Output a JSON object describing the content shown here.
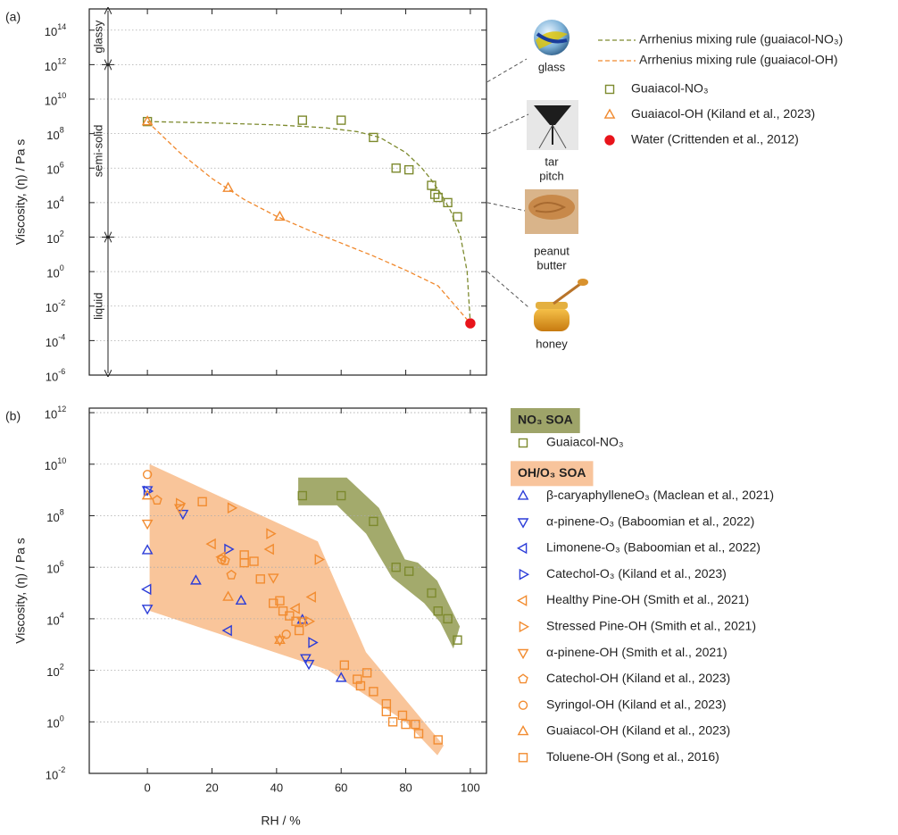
{
  "chart_data": [
    {
      "type": "scatter",
      "label": "(a)",
      "ylabel": "Viscosity, (η) / Pa s",
      "xlim": [
        -18,
        105
      ],
      "ylim": [
        1e-06,
        1700000000000000.0
      ],
      "log_y": true,
      "grid": true,
      "xtick_labels": false,
      "xticks": [
        0,
        20,
        40,
        60,
        80,
        100
      ],
      "yticks": [
        {
          "value": 1e-06,
          "label": "10^-6"
        },
        {
          "value": 0.0001,
          "label": "10^-4"
        },
        {
          "value": 0.01,
          "label": "10^-2"
        },
        {
          "value": 1,
          "label": "10^0"
        },
        {
          "value": 100,
          "label": "10^2"
        },
        {
          "value": 10000.0,
          "label": "10^4"
        },
        {
          "value": 1000000.0,
          "label": "10^6"
        },
        {
          "value": 100000000.0,
          "label": "10^8"
        },
        {
          "value": 10000000000.0,
          "label": "10^10"
        },
        {
          "value": 1000000000000.0,
          "label": "10^12"
        },
        {
          "value": 100000000000000.0,
          "label": "10^14"
        }
      ],
      "regions": {
        "boundaries": [
          1000000000000.0,
          100
        ],
        "labels": [
          "glassy",
          "semi-solid",
          "liquid"
        ]
      },
      "materials": [
        {
          "label": [
            "glass"
          ],
          "viscosity": 100000000000.0
        },
        {
          "label": [
            "tar",
            "pitch"
          ],
          "viscosity": 100000000.0
        },
        {
          "label": [
            "peanut",
            "butter"
          ],
          "viscosity": 10000.0
        },
        {
          "label": [
            "honey"
          ],
          "viscosity": 1
        }
      ],
      "series": [
        {
          "name": "Arrhenius mixing rule (guaiacol-NO₃)",
          "color": "#7d8a2e",
          "style": "dashed",
          "x": [
            0,
            20,
            40,
            55,
            65,
            72,
            80,
            85,
            88,
            91,
            94,
            97,
            99,
            100
          ],
          "values": [
            500000000.0,
            420000000.0,
            320000000.0,
            220000000.0,
            130000000.0,
            60000000.0,
            8000000.0,
            1000000.0,
            200000.0,
            30000.0,
            3000.0,
            100,
            1,
            0.001
          ]
        },
        {
          "name": "Arrhenius mixing rule (guaiacol-OH)",
          "color": "#f0892e",
          "style": "dashed",
          "x": [
            0,
            10,
            20,
            30,
            40,
            50,
            60,
            70,
            80,
            90,
            100
          ],
          "values": [
            500000000.0,
            8000000.0,
            250000.0,
            15000.0,
            1600,
            250,
            45,
            8,
            1.2,
            0.15,
            0.001
          ]
        },
        {
          "name": "Guaiacol-NO₃",
          "color": "#7d8a2e",
          "marker": "square",
          "x": [
            0,
            48,
            60,
            70,
            77,
            81,
            88,
            89,
            90,
            93,
            96
          ],
          "values": [
            500000000.0,
            600000000.0,
            600000000.0,
            60000000.0,
            1000000.0,
            800000.0,
            100000.0,
            30000.0,
            20000.0,
            10000.0,
            1500
          ]
        },
        {
          "name": "Guaiacol-OH (Kiland et al., 2023)",
          "color": "#f0892e",
          "marker": "up",
          "x": [
            0,
            25,
            41
          ],
          "values": [
            500000000.0,
            70000.0,
            1500
          ]
        },
        {
          "name": "Water (Crittenden et al., 2012)",
          "color": "#e8141b",
          "marker": "dot",
          "x": [
            100
          ],
          "values": [
            0.001
          ]
        }
      ]
    },
    {
      "type": "scatter",
      "label": "(b)",
      "ylabel": "Viscosity, (η) / Pa s",
      "xlabel": "RH / %",
      "xlim": [
        -18,
        105
      ],
      "ylim": [
        0.01,
        1500000000000.0
      ],
      "log_y": true,
      "grid": true,
      "xtick_labels": true,
      "xticks": [
        0,
        20,
        40,
        60,
        80,
        100
      ],
      "yticks": [
        {
          "value": 0.01,
          "label": "10^-2"
        },
        {
          "value": 1,
          "label": "10^0"
        },
        {
          "value": 100,
          "label": "10^2"
        },
        {
          "value": 10000.0,
          "label": "10^4"
        },
        {
          "value": 1000000.0,
          "label": "10^6"
        },
        {
          "value": 100000000.0,
          "label": "10^8"
        },
        {
          "value": 10000000000.0,
          "label": "10^10"
        },
        {
          "value": 1000000000000.0,
          "label": "10^12"
        }
      ],
      "groups": [
        {
          "name": "NO₃ SOA",
          "color": "#9ea469",
          "band_color": "#a3aa6c",
          "series": [
            {
              "name": "Guaiacol-NO₃",
              "color": "#7d8a2e",
              "marker": "square",
              "x": [
                48,
                60,
                70,
                77,
                81,
                88,
                90,
                93,
                96
              ],
              "values": [
                600000000.0,
                600000000.0,
                60000000.0,
                1000000.0,
                700000.0,
                100000.0,
                20000.0,
                10000.0,
                1500
              ]
            }
          ]
        },
        {
          "name": "OH/O₃ SOA",
          "color": "#f8c49c",
          "band_color": "#f9c59a",
          "series": [
            {
              "name": "β-caryaphylleneO₃ (Maclean et al., 2021)",
              "color": "#2b3cd8",
              "marker": "up",
              "x": [
                0,
                15,
                29,
                48,
                60
              ],
              "values": [
                4500000.0,
                300000.0,
                50000.0,
                9000,
                50
              ]
            },
            {
              "name": "α-pinene-O₃ (Baboomian et al., 2022)",
              "color": "#2b3cd8",
              "marker": "down",
              "x": [
                0,
                0,
                11,
                49,
                50
              ],
              "values": [
                1000000000.0,
                25000.0,
                120000000.0,
                300,
                180
              ]
            },
            {
              "name": "Limonene-O₃ (Baboomian et al., 2022)",
              "color": "#2b3cd8",
              "marker": "left",
              "x": [
                0,
                25
              ],
              "values": [
                140000.0,
                3500
              ]
            },
            {
              "name": "Catechol-O₃ (Kiland et al., 2023)",
              "color": "#2b3cd8",
              "marker": "right",
              "x": [
                0,
                25,
                51
              ],
              "values": [
                900000000.0,
                5000000.0,
                1200
              ]
            },
            {
              "name": "Healthy Pine-OH (Smith et al., 2021)",
              "color": "#f28c30",
              "marker": "left",
              "x": [
                20,
                23,
                38,
                51,
                46
              ],
              "values": [
                8000000.0,
                2500000.0,
                5000000.0,
                70000.0,
                25000.0
              ]
            },
            {
              "name": "Stressed Pine-OH (Smith et al., 2021)",
              "color": "#f28c30",
              "marker": "right",
              "x": [
                10,
                26,
                38,
                53,
                50
              ],
              "values": [
                300000000.0,
                200000000.0,
                20000000.0,
                2000000.0,
                8000
              ]
            },
            {
              "name": "α-pinene-OH (Smith et al., 2021)",
              "color": "#f28c30",
              "marker": "down",
              "x": [
                0,
                10,
                39,
                48,
                41
              ],
              "values": [
                50000000.0,
                200000000.0,
                400000.0,
                8000,
                1500
              ]
            },
            {
              "name": "Catechol-OH (Kiland et al., 2023)",
              "color": "#f28c30",
              "marker": "pentagon",
              "x": [
                3,
                26,
                24
              ],
              "values": [
                400000000.0,
                500000.0,
                1800000.0
              ]
            },
            {
              "name": "Syringol-OH (Kiland et al., 2023)",
              "color": "#f28c30",
              "marker": "circle",
              "x": [
                0,
                23,
                43
              ],
              "values": [
                4000000000.0,
                2000000.0,
                2500
              ]
            },
            {
              "name": "Guaiacol-OH (Kiland et al., 2023)",
              "color": "#f28c30",
              "marker": "up",
              "x": [
                0,
                25,
                41
              ],
              "values": [
                600000000.0,
                70000.0,
                1500
              ]
            },
            {
              "name": "Toluene-OH (Song et al., 2016)",
              "color": "#f28c30",
              "marker": "square",
              "x": [
                17,
                30,
                30,
                33,
                35,
                39,
                41,
                42,
                44,
                46,
                47,
                61,
                65,
                66,
                68,
                70,
                74,
                74,
                76,
                79,
                80,
                83,
                84,
                90
              ],
              "values": [
                350000000.0,
                3000000.0,
                1500000.0,
                1700000.0,
                350000.0,
                40000.0,
                50000.0,
                20000.0,
                13000.0,
                8000,
                3500,
                160,
                45,
                25,
                80,
                15,
                5,
                2.5,
                1,
                1.8,
                0.8,
                0.8,
                0.35,
                0.2
              ]
            }
          ]
        }
      ]
    }
  ]
}
